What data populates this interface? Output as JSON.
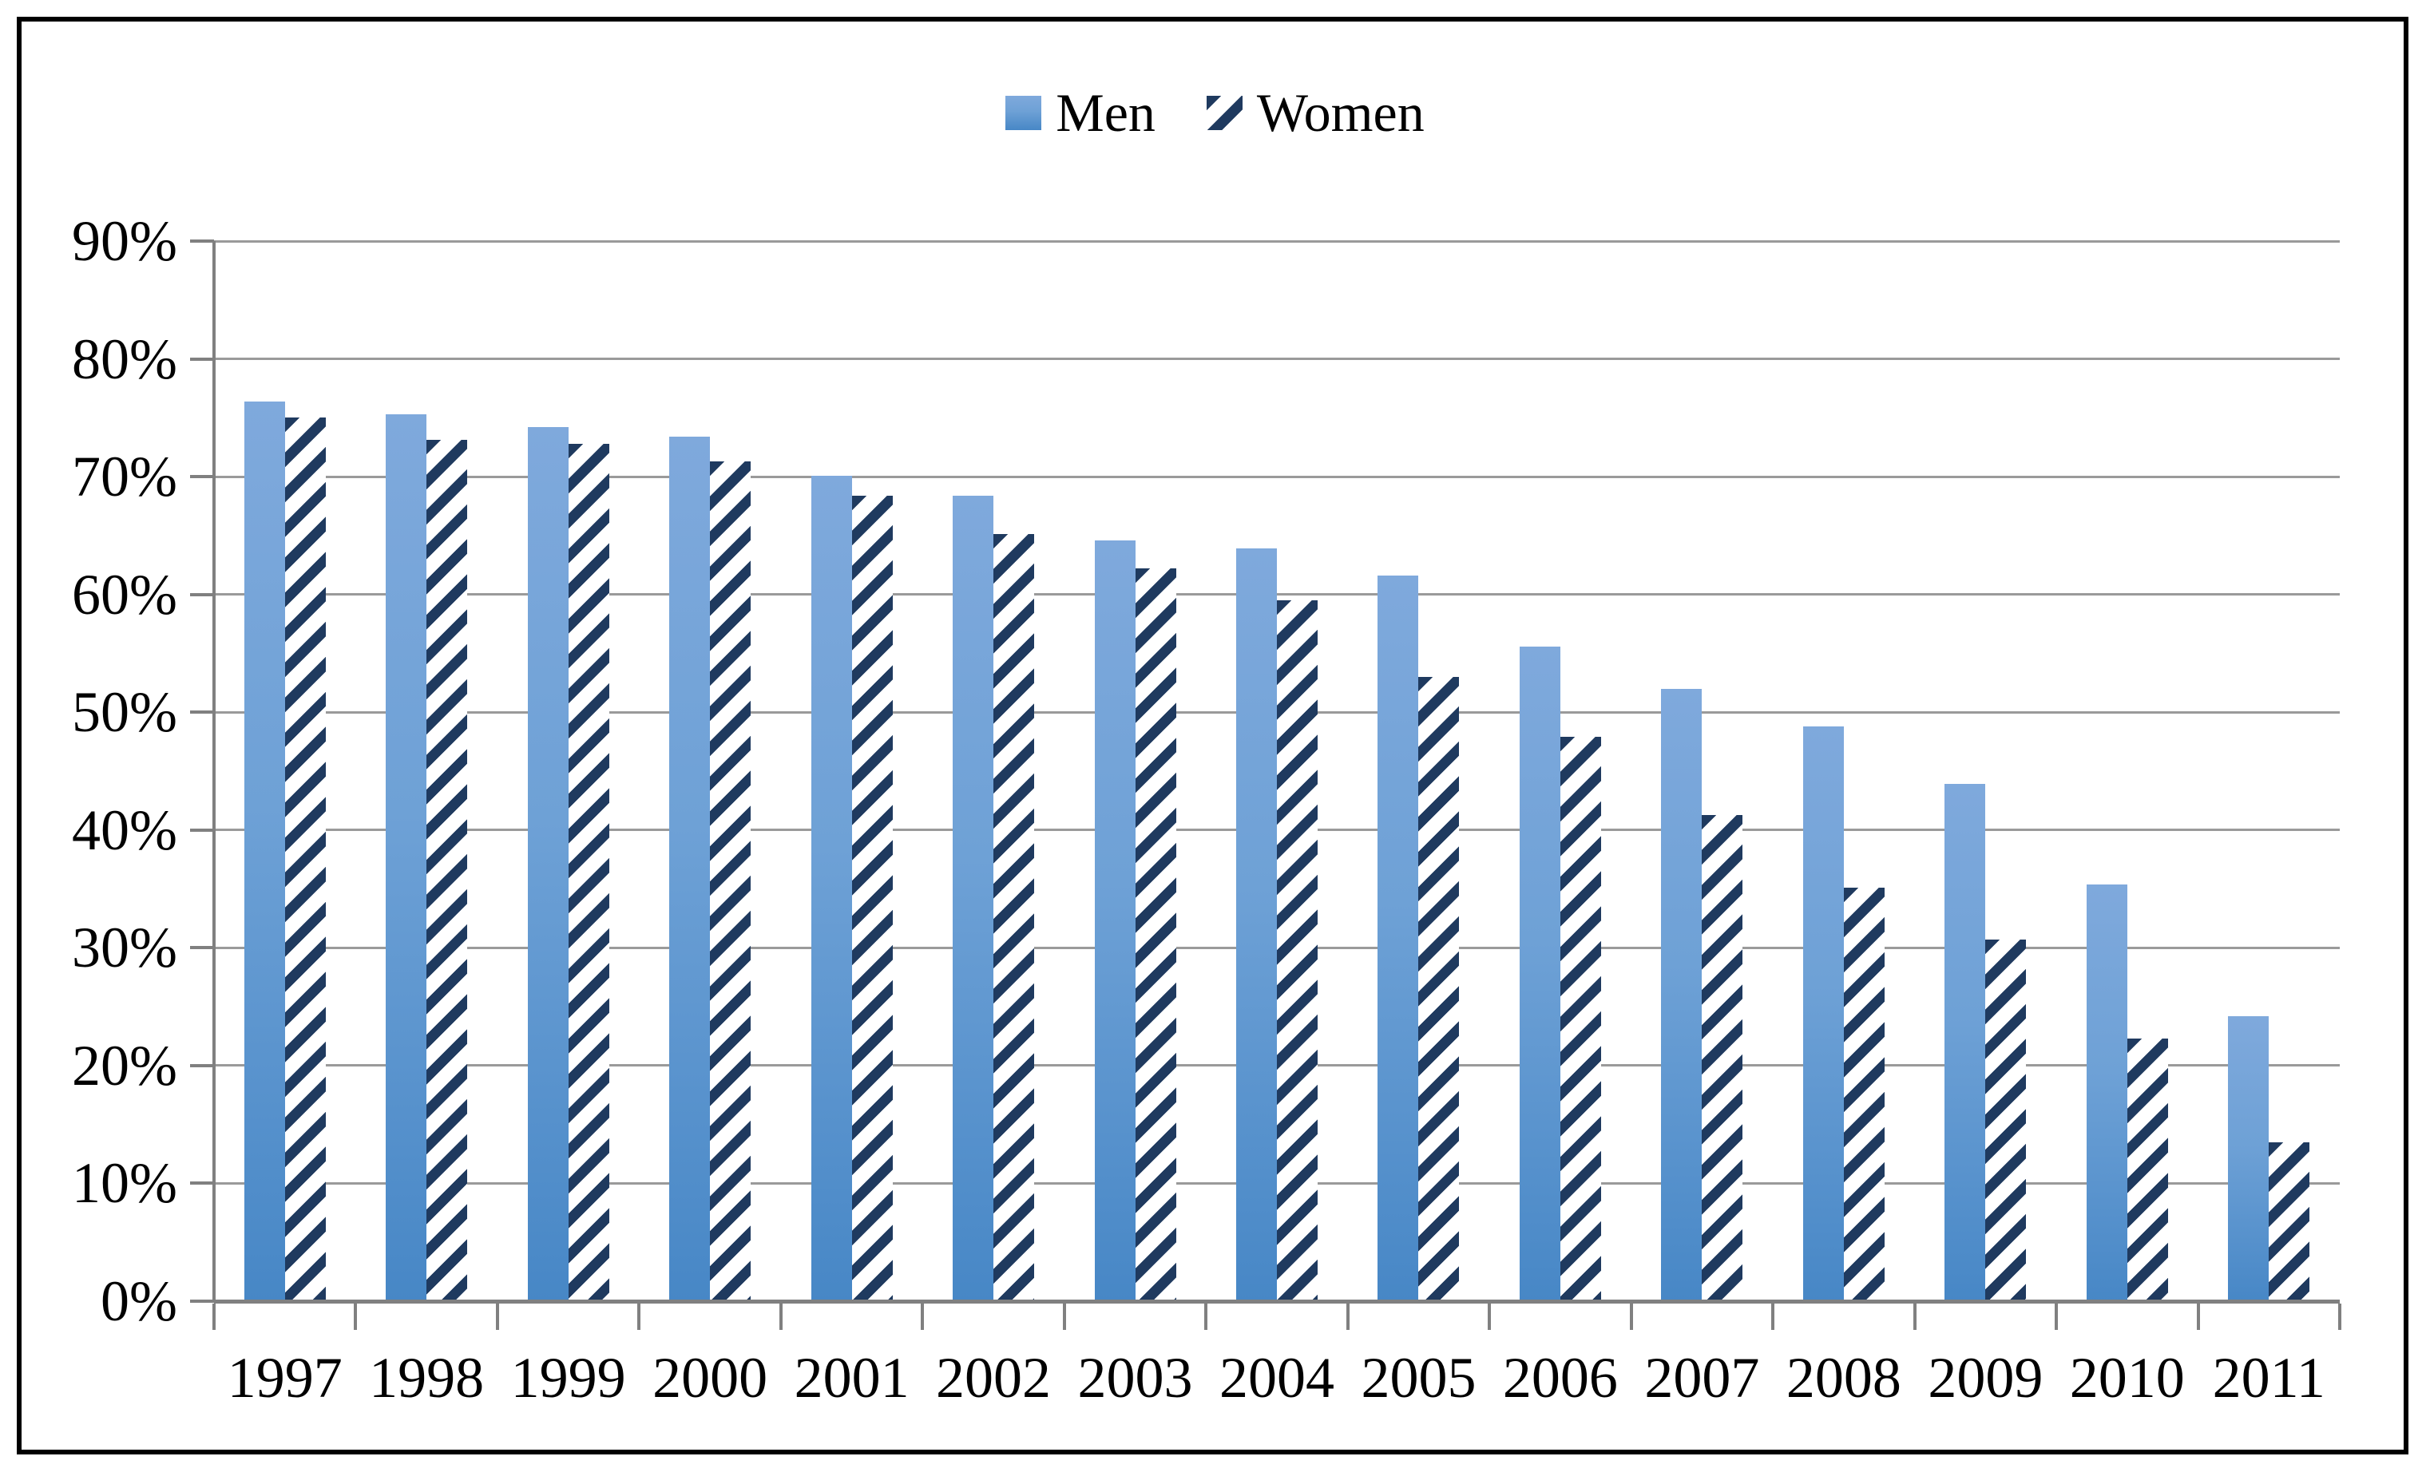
{
  "legend": {
    "items": [
      {
        "label": "Men",
        "swatch": "solid-blue-gradient"
      },
      {
        "label": "Women",
        "swatch": "navy-diagonal-stripes"
      }
    ]
  },
  "y_axis": {
    "tick_labels": [
      "0%",
      "10%",
      "20%",
      "30%",
      "40%",
      "50%",
      "60%",
      "70%",
      "80%",
      "90%"
    ],
    "min": 0,
    "max": 90,
    "step": 10
  },
  "x_axis": {
    "tick_labels": [
      "1997",
      "1998",
      "1999",
      "2000",
      "2001",
      "2002",
      "2003",
      "2004",
      "2005",
      "2006",
      "2007",
      "2008",
      "2009",
      "2010",
      "2011"
    ]
  },
  "chart_data": {
    "type": "bar",
    "title": "",
    "xlabel": "",
    "ylabel": "",
    "categories": [
      "1997",
      "1998",
      "1999",
      "2000",
      "2001",
      "2002",
      "2003",
      "2004",
      "2005",
      "2006",
      "2007",
      "2008",
      "2009",
      "2010",
      "2011"
    ],
    "series": [
      {
        "name": "Men",
        "values": [
          76.4,
          75.3,
          74.2,
          73.4,
          70.1,
          68.4,
          64.6,
          63.9,
          61.6,
          55.6,
          52.0,
          48.8,
          43.9,
          35.4,
          24.2
        ]
      },
      {
        "name": "Women",
        "values": [
          75.0,
          73.1,
          72.8,
          71.3,
          68.4,
          65.1,
          62.2,
          59.5,
          53.0,
          47.9,
          41.3,
          35.1,
          30.7,
          22.3,
          13.5
        ]
      }
    ],
    "ylim": [
      0,
      90
    ],
    "grid": true,
    "legend_position": "top-center"
  },
  "colors": {
    "men_bar_top": "#7fa9dc",
    "men_bar_bottom": "#4787c6",
    "women_stripe": "#1f3a5f",
    "women_background": "#ffffff",
    "gridline": "#9a9a9a",
    "axis": "#808080",
    "text": "#000000",
    "border": "#000000"
  }
}
